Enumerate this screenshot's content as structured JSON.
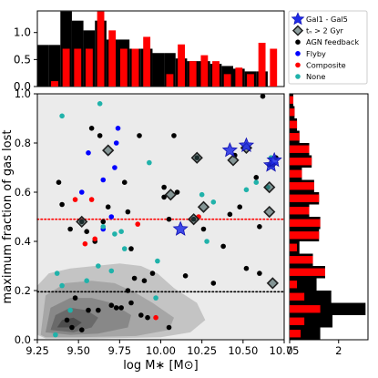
{
  "chart_data": [
    {
      "id": "top_hist",
      "type": "bar",
      "xlim": [
        9.25,
        10.75
      ],
      "ylim": [
        0,
        1.4
      ],
      "yticks": [
        "0.0",
        "0.5",
        "1.0"
      ],
      "bins": [
        {
          "x0": 9.25,
          "x1": 9.32,
          "all": 0.77,
          "red": 0.0
        },
        {
          "x0": 9.32,
          "x1": 9.39,
          "all": 0.77,
          "red": 0.1
        },
        {
          "x0": 9.39,
          "x1": 9.46,
          "all": 1.39,
          "red": 0.7
        },
        {
          "x0": 9.46,
          "x1": 9.53,
          "all": 1.22,
          "red": 0.7
        },
        {
          "x0": 9.53,
          "x1": 9.6,
          "all": 1.04,
          "red": 0.7
        },
        {
          "x0": 9.6,
          "x1": 9.67,
          "all": 1.22,
          "red": 1.39
        },
        {
          "x0": 9.67,
          "x1": 9.74,
          "all": 0.87,
          "red": 1.04
        },
        {
          "x0": 9.74,
          "x1": 9.81,
          "all": 0.87,
          "red": 0.7
        },
        {
          "x0": 9.81,
          "x1": 9.88,
          "all": 0.7,
          "red": 0.7
        },
        {
          "x0": 9.88,
          "x1": 9.95,
          "all": 0.7,
          "red": 0.92
        },
        {
          "x0": 9.95,
          "x1": 10.02,
          "all": 0.62,
          "red": 0.0
        },
        {
          "x0": 10.02,
          "x1": 10.09,
          "all": 0.62,
          "red": 0.23
        },
        {
          "x0": 10.09,
          "x1": 10.16,
          "all": 0.52,
          "red": 0.78
        },
        {
          "x0": 10.16,
          "x1": 10.23,
          "all": 0.47,
          "red": 0.47
        },
        {
          "x0": 10.23,
          "x1": 10.3,
          "all": 0.47,
          "red": 0.58
        },
        {
          "x0": 10.3,
          "x1": 10.37,
          "all": 0.42,
          "red": 0.47
        },
        {
          "x0": 10.37,
          "x1": 10.44,
          "all": 0.38,
          "red": 0.23
        },
        {
          "x0": 10.44,
          "x1": 10.51,
          "all": 0.33,
          "red": 0.35
        },
        {
          "x0": 10.51,
          "x1": 10.58,
          "all": 0.28,
          "red": 0.23
        },
        {
          "x0": 10.58,
          "x1": 10.65,
          "all": 0.28,
          "red": 0.81
        },
        {
          "x0": 10.65,
          "x1": 10.72,
          "all": 0.0,
          "red": 0.7
        },
        {
          "x0": 10.72,
          "x1": 10.75,
          "all": 0.0,
          "red": 0.0
        }
      ],
      "colors": {
        "all": "#000000",
        "red": "#ff0000"
      }
    },
    {
      "id": "main_scatter",
      "type": "scatter",
      "xlabel": "log M∗ [M⊙]",
      "ylabel": "maximum fraction of gas lost",
      "xlim": [
        9.25,
        10.75
      ],
      "ylim": [
        0.0,
        1.0
      ],
      "xticks": [
        "9.25",
        "9.50",
        "9.75",
        "10.00",
        "10.25",
        "10.50",
        "10.75"
      ],
      "yticks": [
        "0.0",
        "0.2",
        "0.4",
        "0.6",
        "0.8",
        "1.0"
      ],
      "background": "#ebebeb",
      "hlines": [
        {
          "y": 0.49,
          "color": "#ff0000",
          "style": "dotted"
        },
        {
          "y": 0.195,
          "color": "#000000",
          "style": "dotted"
        }
      ],
      "series": [
        {
          "name": "AGN feedback",
          "color": "#000000",
          "points": [
            [
              9.38,
              0.64
            ],
            [
              9.4,
              0.55
            ],
            [
              9.45,
              0.45
            ],
            [
              9.52,
              0.48
            ],
            [
              9.58,
              0.86
            ],
            [
              9.63,
              0.83
            ],
            [
              9.68,
              0.54
            ],
            [
              9.78,
              0.64
            ],
            [
              9.8,
              0.52
            ],
            [
              9.82,
              0.37
            ],
            [
              9.84,
              0.25
            ],
            [
              9.87,
              0.83
            ],
            [
              9.9,
              0.24
            ],
            [
              9.95,
              0.27
            ],
            [
              10.02,
              0.58
            ],
            [
              10.02,
              0.62
            ],
            [
              10.05,
              0.49
            ],
            [
              10.08,
              0.83
            ],
            [
              10.1,
              0.6
            ],
            [
              10.2,
              0.49
            ],
            [
              10.22,
              0.74
            ],
            [
              10.26,
              0.45
            ],
            [
              10.32,
              0.23
            ],
            [
              10.38,
              0.38
            ],
            [
              10.42,
              0.51
            ],
            [
              10.45,
              0.75
            ],
            [
              10.48,
              0.54
            ],
            [
              10.52,
              0.29
            ],
            [
              10.58,
              0.66
            ],
            [
              10.6,
              0.46
            ],
            [
              10.6,
              0.27
            ],
            [
              10.62,
              0.99
            ],
            [
              10.66,
              0.71
            ],
            [
              10.68,
              0.71
            ],
            [
              10.7,
              0.74
            ],
            [
              9.43,
              0.08
            ],
            [
              9.46,
              0.05
            ],
            [
              9.48,
              0.17
            ],
            [
              9.52,
              0.04
            ],
            [
              9.56,
              0.12
            ],
            [
              9.62,
              0.12
            ],
            [
              9.7,
              0.14
            ],
            [
              9.73,
              0.13
            ],
            [
              9.76,
              0.13
            ],
            [
              9.8,
              0.2
            ],
            [
              9.82,
              0.15
            ],
            [
              9.88,
              0.1
            ],
            [
              9.92,
              0.09
            ],
            [
              10.05,
              0.05
            ],
            [
              10.15,
              0.26
            ],
            [
              9.6,
              0.4
            ],
            [
              9.55,
              0.44
            ],
            [
              9.65,
              0.48
            ]
          ]
        },
        {
          "name": "Flyby",
          "color": "#0000ff",
          "points": [
            [
              9.52,
              0.6
            ],
            [
              9.56,
              0.76
            ],
            [
              9.65,
              0.45
            ],
            [
              9.7,
              0.5
            ],
            [
              9.73,
              0.8
            ],
            [
              9.74,
              0.86
            ],
            [
              9.72,
              0.7
            ],
            [
              9.65,
              0.65
            ]
          ]
        },
        {
          "name": "Composite",
          "color": "#ff0000",
          "points": [
            [
              9.48,
              0.57
            ],
            [
              9.54,
              0.39
            ],
            [
              9.58,
              0.57
            ],
            [
              9.6,
              0.41
            ],
            [
              9.86,
              0.47
            ],
            [
              9.97,
              0.09
            ],
            [
              10.23,
              0.5
            ]
          ]
        },
        {
          "name": "None",
          "color": "#20b2aa",
          "points": [
            [
              9.4,
              0.91
            ],
            [
              9.36,
              0.02
            ],
            [
              9.37,
              0.27
            ],
            [
              9.4,
              0.22
            ],
            [
              9.45,
              0.12
            ],
            [
              9.63,
              0.96
            ],
            [
              9.65,
              0.46
            ],
            [
              9.7,
              0.28
            ],
            [
              9.72,
              0.43
            ],
            [
              9.76,
              0.44
            ],
            [
              9.78,
              0.37
            ],
            [
              9.93,
              0.72
            ],
            [
              9.97,
              0.17
            ],
            [
              9.98,
              0.32
            ],
            [
              10.25,
              0.59
            ],
            [
              10.28,
              0.4
            ],
            [
              10.32,
              0.56
            ],
            [
              10.52,
              0.61
            ],
            [
              10.58,
              0.64
            ],
            [
              10.65,
              0.62
            ],
            [
              10.67,
              0.74
            ],
            [
              9.55,
              0.24
            ],
            [
              9.62,
              0.3
            ]
          ]
        }
      ],
      "tc_points": [
        [
          9.52,
          0.48
        ],
        [
          9.68,
          0.77
        ],
        [
          10.06,
          0.59
        ],
        [
          10.2,
          0.49
        ],
        [
          10.22,
          0.74
        ],
        [
          10.26,
          0.54
        ],
        [
          10.44,
          0.73
        ],
        [
          10.52,
          0.78
        ],
        [
          10.66,
          0.62
        ],
        [
          10.66,
          0.52
        ],
        [
          10.68,
          0.23
        ]
      ],
      "gal_points": [
        [
          10.12,
          0.45
        ],
        [
          10.42,
          0.77
        ],
        [
          10.52,
          0.79
        ],
        [
          10.67,
          0.71
        ],
        [
          10.69,
          0.73
        ]
      ],
      "contour_levels": [
        "#c4c4c4",
        "#a6a6a6",
        "#888888",
        "#6a6a6a",
        "#4d4d4d"
      ]
    },
    {
      "id": "right_hist",
      "type": "bar",
      "orientation": "horizontal",
      "xlim": [
        0,
        3.2
      ],
      "xticks": [
        "0",
        "2"
      ],
      "ylim": [
        0.0,
        1.0
      ],
      "bins": [
        {
          "y0": 0.0,
          "y1": 0.05,
          "all": 1.25,
          "red": 0.45
        },
        {
          "y0": 0.05,
          "y1": 0.1,
          "all": 1.75,
          "red": 0.6
        },
        {
          "y0": 0.1,
          "y1": 0.15,
          "all": 3.1,
          "red": 1.25
        },
        {
          "y0": 0.15,
          "y1": 0.2,
          "all": 1.7,
          "red": 0.6
        },
        {
          "y0": 0.2,
          "y1": 0.25,
          "all": 1.1,
          "red": 0.3
        },
        {
          "y0": 0.25,
          "y1": 0.3,
          "all": 1.45,
          "red": 1.45
        },
        {
          "y0": 0.3,
          "y1": 0.35,
          "all": 0.95,
          "red": 0.95
        },
        {
          "y0": 0.35,
          "y1": 0.4,
          "all": 0.4,
          "red": 0.3
        },
        {
          "y0": 0.4,
          "y1": 0.45,
          "all": 1.2,
          "red": 1.2
        },
        {
          "y0": 0.45,
          "y1": 0.5,
          "all": 1.25,
          "red": 1.25
        },
        {
          "y0": 0.5,
          "y1": 0.55,
          "all": 0.8,
          "red": 0.8
        },
        {
          "y0": 0.55,
          "y1": 0.6,
          "all": 1.2,
          "red": 1.2
        },
        {
          "y0": 0.6,
          "y1": 0.65,
          "all": 1.0,
          "red": 1.0
        },
        {
          "y0": 0.65,
          "y1": 0.7,
          "all": 0.5,
          "red": 0.5
        },
        {
          "y0": 0.7,
          "y1": 0.75,
          "all": 0.9,
          "red": 0.9
        },
        {
          "y0": 0.75,
          "y1": 0.8,
          "all": 0.8,
          "red": 0.8
        },
        {
          "y0": 0.8,
          "y1": 0.85,
          "all": 0.4,
          "red": 0.4
        },
        {
          "y0": 0.85,
          "y1": 0.9,
          "all": 0.3,
          "red": 0.3
        },
        {
          "y0": 0.9,
          "y1": 0.95,
          "all": 0.2,
          "red": 0.2
        },
        {
          "y0": 0.95,
          "y1": 1.0,
          "all": 0.15,
          "red": 0.15
        }
      ],
      "colors": {
        "all": "#000000",
        "red": "#ff0000"
      }
    }
  ],
  "legend": [
    {
      "label": "Gal1 - Gal5",
      "marker": "star",
      "color": "#1e2be6"
    },
    {
      "label": "tₙ > 2 Gyr",
      "marker": "diamond",
      "color": "#555555"
    },
    {
      "label": "AGN feedback",
      "marker": "dot",
      "color": "#000000"
    },
    {
      "label": "Flyby",
      "marker": "dot",
      "color": "#0000ff"
    },
    {
      "label": "Composite",
      "marker": "dot",
      "color": "#ff0000"
    },
    {
      "label": "None",
      "marker": "dot",
      "color": "#20b2aa"
    }
  ]
}
